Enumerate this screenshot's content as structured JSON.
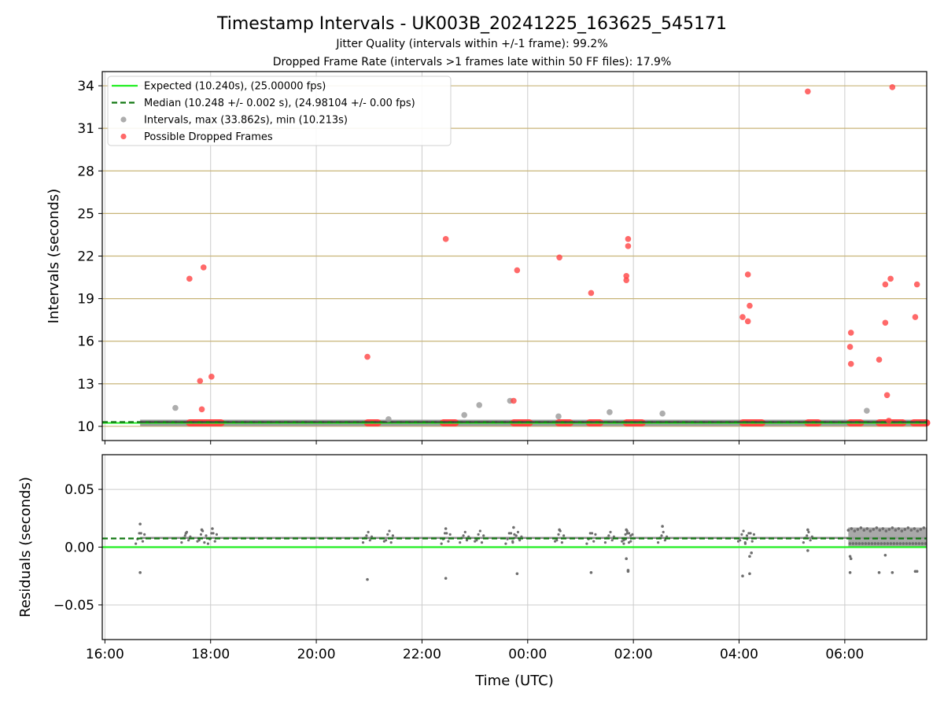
{
  "figure": {
    "title": "Timestamp Intervals - UK003B_20241225_163625_545171",
    "subtitle_1": "Jitter Quality (intervals within +/-1 frame): 99.2%",
    "subtitle_2": "Dropped Frame Rate (intervals >1 frames late within 50 FF files): 17.9%"
  },
  "colors": {
    "expected": "#22ee22",
    "median": "#117711",
    "intervals": "#999999",
    "dropped": "#ff4444",
    "hgrid_top": "#c8b478",
    "grid": "#cccccc",
    "residuals": "#6e6e6e"
  },
  "chart_data": [
    {
      "type": "scatter",
      "id": "intervals",
      "xlabel": "",
      "ylabel": "Intervals (seconds)",
      "xlim": [
        "15:57",
        "07:33"
      ],
      "ylim": [
        9,
        35
      ],
      "yticks": [
        10,
        13,
        16,
        19,
        22,
        25,
        28,
        31,
        34
      ],
      "xticks": [
        "16:00",
        "18:00",
        "20:00",
        "22:00",
        "00:00",
        "02:00",
        "04:00",
        "06:00"
      ],
      "legend": {
        "placement": "top-left",
        "entries": [
          "Expected (10.240s), (25.00000 fps)",
          "Median (10.248 +/- 0.002 s), (24.98104 +/- 0.00 fps)",
          "Intervals, max (33.862s), min (10.213s)",
          "Possible Dropped Frames"
        ]
      },
      "expected_value": 10.24,
      "median_value": 10.248,
      "baseline_span": [
        "16:40",
        "07:33"
      ],
      "series": [
        {
          "name": "Intervals, max (33.862s), min (10.213s)",
          "points": [
            [
              "17:20",
              11.3
            ],
            [
              "21:22",
              10.5
            ],
            [
              "22:48",
              10.8
            ],
            [
              "23:05",
              11.5
            ],
            [
              "23:40",
              11.8
            ],
            [
              "00:35",
              10.7
            ],
            [
              "01:33",
              11.0
            ],
            [
              "02:33",
              10.9
            ],
            [
              "06:25",
              11.1
            ]
          ]
        },
        {
          "name": "Possible Dropped Frames",
          "points": [
            [
              "17:36",
              20.4
            ],
            [
              "17:48",
              13.2
            ],
            [
              "17:50",
              11.2
            ],
            [
              "17:52",
              21.2
            ],
            [
              "18:01",
              13.5
            ],
            [
              "20:58",
              14.9
            ],
            [
              "22:27",
              23.2
            ],
            [
              "23:44",
              11.8
            ],
            [
              "23:48",
              21.0
            ],
            [
              "00:36",
              21.9
            ],
            [
              "01:12",
              19.4
            ],
            [
              "01:52",
              20.6
            ],
            [
              "01:52",
              20.3
            ],
            [
              "01:54",
              23.2
            ],
            [
              "01:54",
              22.7
            ],
            [
              "04:04",
              17.7
            ],
            [
              "04:10",
              20.7
            ],
            [
              "04:10",
              17.4
            ],
            [
              "04:12",
              18.5
            ],
            [
              "05:18",
              33.6
            ],
            [
              "06:06",
              15.6
            ],
            [
              "06:07",
              16.6
            ],
            [
              "06:07",
              14.4
            ],
            [
              "06:39",
              14.7
            ],
            [
              "06:46",
              17.3
            ],
            [
              "06:46",
              20.0
            ],
            [
              "06:48",
              12.2
            ],
            [
              "06:52",
              20.4
            ],
            [
              "06:54",
              33.9
            ],
            [
              "07:20",
              17.7
            ],
            [
              "07:22",
              20.0
            ],
            [
              "06:50",
              10.4
            ]
          ]
        }
      ],
      "dropped_clusters": [
        [
          "17:36",
          "18:12"
        ],
        [
          "20:58",
          "21:10"
        ],
        [
          "22:24",
          "22:38"
        ],
        [
          "23:44",
          "00:02"
        ],
        [
          "00:35",
          "00:48"
        ],
        [
          "01:10",
          "01:22"
        ],
        [
          "01:52",
          "02:10"
        ],
        [
          "04:04",
          "04:26"
        ],
        [
          "05:18",
          "05:30"
        ],
        [
          "06:06",
          "06:18"
        ],
        [
          "06:39",
          "07:06"
        ],
        [
          "07:18",
          "07:33"
        ]
      ]
    },
    {
      "type": "scatter",
      "id": "residuals",
      "xlabel": "Time (UTC)",
      "ylabel": "Residuals (seconds)",
      "xlim": [
        "15:57",
        "07:33"
      ],
      "ylim": [
        -0.08,
        0.08
      ],
      "yticks": [
        0.05,
        0.0,
        -0.05
      ],
      "ytick_labels": [
        "0.05",
        "0.00",
        "−0.05"
      ],
      "xticks": [
        "16:00",
        "18:00",
        "20:00",
        "22:00",
        "00:00",
        "02:00",
        "04:00",
        "06:00"
      ],
      "expected_value": 0.0,
      "median_value": 0.0075,
      "baseline_span": [
        "16:40",
        "07:33"
      ],
      "outliers": [
        [
          "16:40",
          0.02
        ],
        [
          "16:40",
          -0.022
        ],
        [
          "17:32",
          0.012
        ],
        [
          "17:50",
          0.015
        ],
        [
          "18:02",
          0.016
        ],
        [
          "20:58",
          -0.028
        ],
        [
          "22:27",
          -0.027
        ],
        [
          "22:27",
          0.016
        ],
        [
          "23:44",
          0.017
        ],
        [
          "23:48",
          -0.023
        ],
        [
          "00:36",
          0.015
        ],
        [
          "01:12",
          -0.022
        ],
        [
          "01:52",
          -0.01
        ],
        [
          "01:52",
          0.015
        ],
        [
          "01:54",
          -0.021
        ],
        [
          "01:54",
          -0.02
        ],
        [
          "02:33",
          0.018
        ],
        [
          "04:04",
          -0.025
        ],
        [
          "04:12",
          -0.023
        ],
        [
          "04:12",
          -0.008
        ],
        [
          "04:14",
          -0.005
        ],
        [
          "05:18",
          -0.003
        ],
        [
          "05:18",
          0.015
        ],
        [
          "06:06",
          -0.022
        ],
        [
          "06:06",
          -0.008
        ],
        [
          "06:07",
          -0.01
        ],
        [
          "06:39",
          -0.022
        ],
        [
          "06:46",
          -0.007
        ],
        [
          "06:54",
          -0.022
        ],
        [
          "07:20",
          -0.021
        ],
        [
          "07:22",
          -0.021
        ]
      ],
      "dense_band": [
        "06:04",
        "07:33",
        0.0,
        0.017
      ]
    }
  ]
}
